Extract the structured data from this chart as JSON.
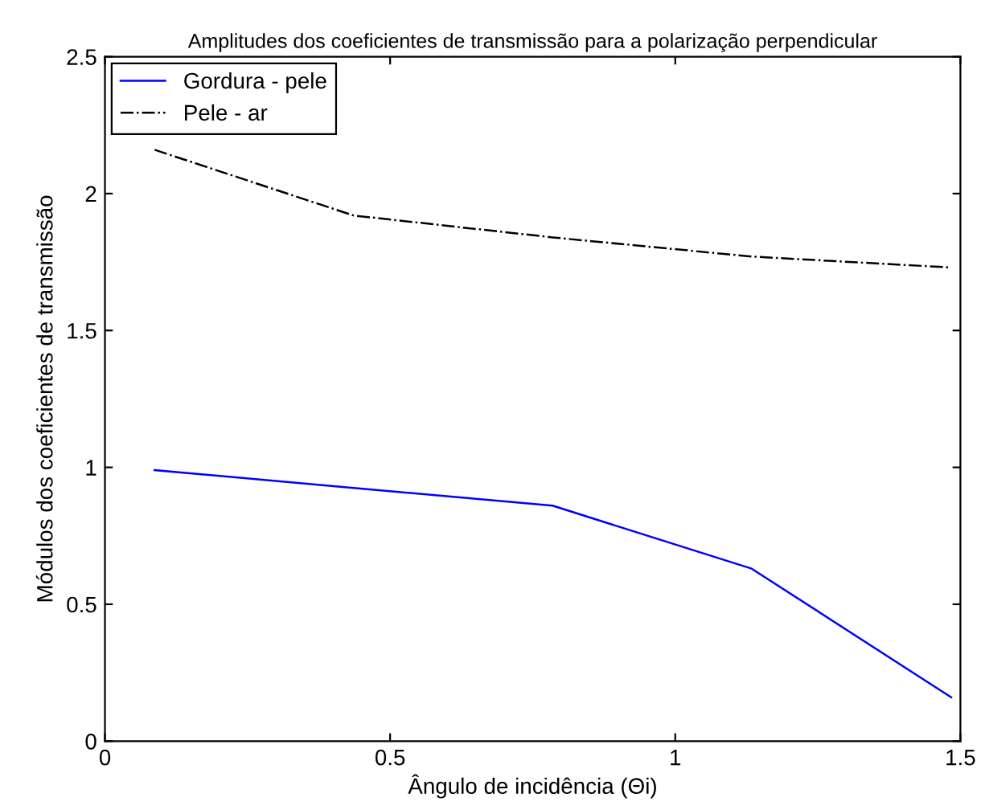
{
  "chart_data": {
    "type": "line",
    "title": "Amplitudes dos coeficientes de transmissão para a polarização perpendicular",
    "xlabel": "Ângulo de incidência (Θi)",
    "ylabel": "Módulos dos coeficientes de transmissão",
    "x": [
      0.087,
      0.436,
      0.785,
      1.134,
      1.484
    ],
    "series": [
      {
        "name": "Gordura - pele",
        "color": "#0000ff",
        "line_style": "solid",
        "values": [
          0.99,
          0.925,
          0.86,
          0.63,
          0.16
        ]
      },
      {
        "name": "Pele - ar",
        "color": "#000000",
        "line_style": "dashdot",
        "values": [
          2.16,
          1.92,
          1.84,
          1.77,
          1.73
        ]
      }
    ],
    "xlim": [
      0,
      1.5
    ],
    "xticks": [
      0,
      0.5,
      1,
      1.5
    ],
    "ylim": [
      0,
      2.5
    ],
    "yticks": [
      0,
      0.5,
      1,
      1.5,
      2,
      2.5
    ],
    "grid": false,
    "legend": "top left",
    "marker": "none"
  }
}
